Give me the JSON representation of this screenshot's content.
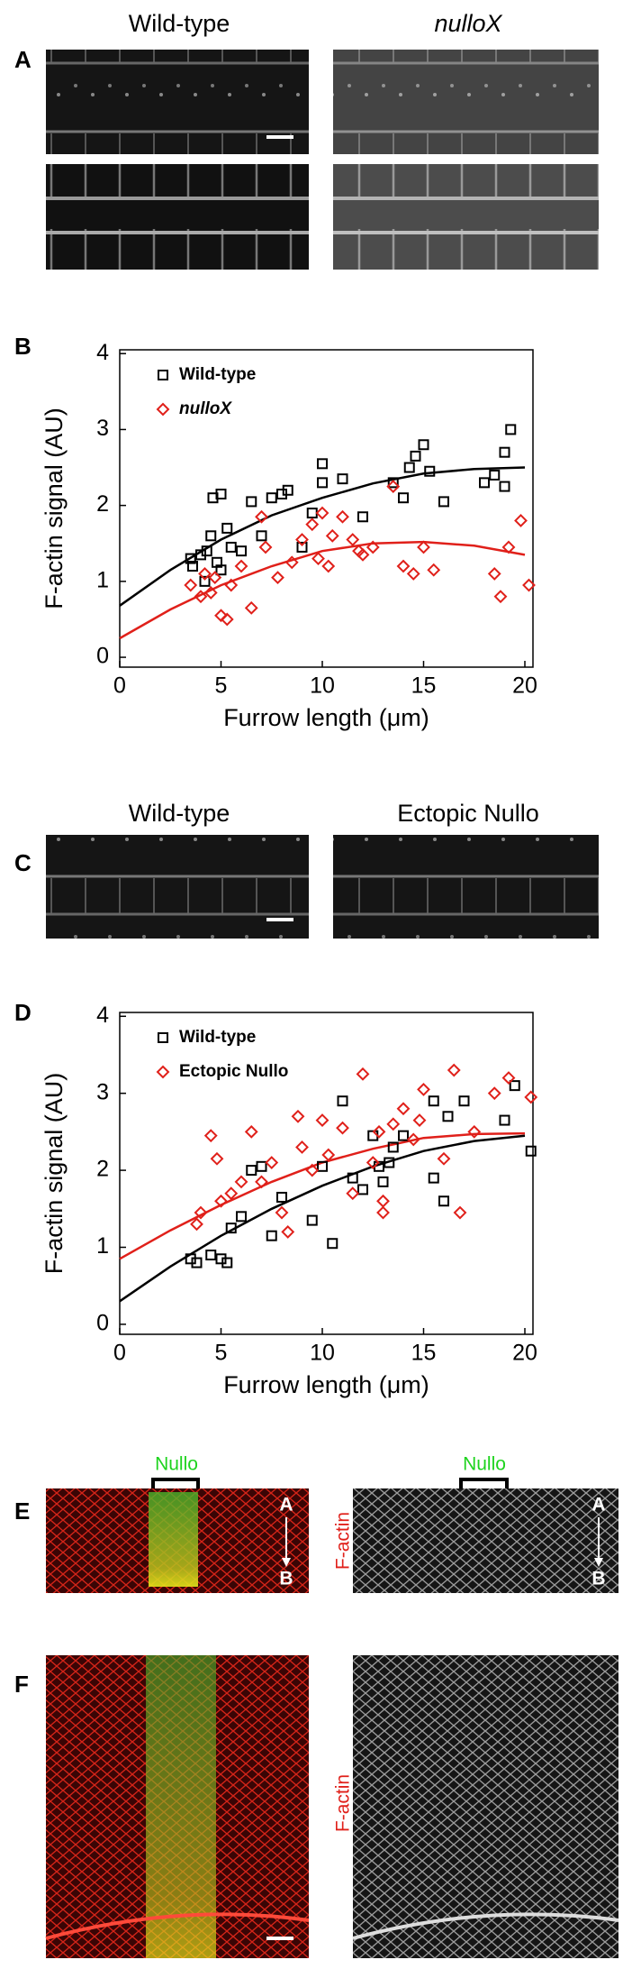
{
  "figure": {
    "panel_labels": [
      "A",
      "B",
      "C",
      "D",
      "E",
      "F"
    ],
    "a_titles": [
      "Wild-type",
      "nulloX"
    ],
    "c_titles": [
      "Wild-type",
      "Ectopic Nullo"
    ],
    "e_marker": [
      "Nullo",
      "Nullo"
    ],
    "e_axis": [
      "A",
      "B",
      "A",
      "B"
    ],
    "channel_labels": [
      "F-actin",
      "F-actin"
    ]
  },
  "chart_data": [
    {
      "type": "scatter",
      "x_label": "Furrow length (μm)",
      "y_label": "F-actin signal (AU)",
      "xlim": [
        0,
        20.4
      ],
      "ylim": [
        -0.13,
        4.05
      ],
      "xticks": [
        0,
        5,
        10,
        15,
        20
      ],
      "yticks": [
        0,
        1,
        2,
        3,
        4
      ],
      "series": [
        {
          "name": "Wild-type",
          "color": "#000000",
          "marker": "square",
          "x": [
            3.5,
            3.6,
            4,
            4.2,
            4.3,
            4.5,
            4.6,
            4.8,
            5,
            5,
            5.3,
            5.5,
            6,
            6.5,
            7,
            7.5,
            8,
            8.3,
            9,
            9.5,
            10,
            10,
            11,
            12,
            13.5,
            14,
            14.3,
            14.6,
            15,
            15.3,
            16,
            18,
            18.5,
            19,
            19.3,
            19
          ],
          "values": [
            1.3,
            1.2,
            1.35,
            1.0,
            1.4,
            1.6,
            2.1,
            1.25,
            2.15,
            1.15,
            1.7,
            1.45,
            1.4,
            2.05,
            1.6,
            2.1,
            2.15,
            2.2,
            1.45,
            1.9,
            2.55,
            2.3,
            2.35,
            1.85,
            2.3,
            2.1,
            2.5,
            2.65,
            2.8,
            2.45,
            2.05,
            2.3,
            2.4,
            2.7,
            3.0,
            2.25
          ]
        },
        {
          "name": "nulloX",
          "color": "#e0201a",
          "marker": "diamond",
          "italic": true,
          "x": [
            3.5,
            4,
            4.2,
            4.5,
            4.7,
            5,
            5.3,
            5.5,
            6,
            6.5,
            7,
            7.2,
            7.8,
            8.5,
            9,
            9.5,
            9.8,
            10,
            10.3,
            11,
            11.5,
            12,
            12.5,
            13.5,
            14,
            14.5,
            15,
            15.5,
            18.5,
            18.8,
            19.2,
            19.8,
            20.2,
            10.5,
            11.8
          ],
          "values": [
            0.95,
            0.8,
            1.1,
            0.85,
            1.05,
            0.55,
            0.5,
            0.95,
            1.2,
            0.65,
            1.85,
            1.45,
            1.05,
            1.25,
            1.55,
            1.75,
            1.3,
            1.9,
            1.2,
            1.85,
            1.55,
            1.35,
            1.45,
            2.25,
            1.2,
            1.1,
            1.45,
            1.15,
            1.1,
            0.8,
            1.45,
            1.8,
            0.95,
            1.6,
            1.4
          ]
        }
      ],
      "fit_lines": [
        {
          "color": "#000000",
          "x": [
            0,
            2.5,
            5,
            7.5,
            10,
            12.5,
            15,
            17.5,
            20
          ],
          "values": [
            0.68,
            1.15,
            1.55,
            1.87,
            2.1,
            2.29,
            2.42,
            2.48,
            2.5
          ]
        },
        {
          "color": "#e0201a",
          "x": [
            0,
            2.5,
            5,
            7.5,
            10,
            12.5,
            15,
            17.5,
            20
          ],
          "values": [
            0.25,
            0.63,
            0.95,
            1.2,
            1.4,
            1.5,
            1.52,
            1.47,
            1.35
          ]
        }
      ]
    },
    {
      "type": "scatter",
      "x_label": "Furrow length (μm)",
      "y_label": "F-actin signal (AU)",
      "xlim": [
        0,
        20.4
      ],
      "ylim": [
        -0.13,
        4.05
      ],
      "xticks": [
        0,
        5,
        10,
        15,
        20
      ],
      "yticks": [
        0,
        1,
        2,
        3,
        4
      ],
      "series": [
        {
          "name": "Wild-type",
          "color": "#000000",
          "marker": "square",
          "x": [
            3.5,
            3.8,
            4.5,
            5,
            5.3,
            5.5,
            6,
            6.5,
            7,
            7.5,
            8,
            9.5,
            10,
            10.5,
            11,
            11.5,
            12,
            12.5,
            13,
            13.3,
            13.5,
            14,
            15.5,
            16,
            16.2,
            17,
            19,
            19.5,
            20.3,
            15.5,
            12.8
          ],
          "values": [
            0.85,
            0.8,
            0.9,
            0.85,
            0.8,
            1.25,
            1.4,
            2.0,
            2.05,
            1.15,
            1.65,
            1.35,
            2.05,
            1.05,
            2.9,
            1.9,
            1.75,
            2.45,
            1.85,
            2.1,
            2.3,
            2.45,
            1.9,
            1.6,
            2.7,
            2.9,
            2.65,
            3.1,
            2.25,
            2.9,
            2.05
          ]
        },
        {
          "name": "Ectopic Nullo",
          "color": "#e0201a",
          "marker": "diamond",
          "x": [
            3.8,
            4,
            4.5,
            4.8,
            5,
            5.5,
            6,
            6.5,
            7,
            7.5,
            8,
            8.3,
            8.8,
            9,
            9.5,
            10,
            10.3,
            11,
            11.5,
            12,
            12.5,
            13,
            13,
            13.5,
            14,
            14.5,
            15,
            16,
            16.5,
            16.8,
            17.5,
            18.5,
            19.2,
            20.3,
            12.8,
            14.8
          ],
          "values": [
            1.3,
            1.45,
            2.45,
            2.15,
            1.6,
            1.7,
            1.85,
            2.5,
            1.85,
            2.1,
            1.45,
            1.2,
            2.7,
            2.3,
            2.0,
            2.65,
            2.2,
            2.55,
            1.7,
            3.25,
            2.1,
            1.6,
            1.45,
            2.6,
            2.8,
            2.4,
            3.05,
            2.15,
            3.3,
            1.45,
            2.5,
            3.0,
            3.2,
            2.95,
            2.5,
            2.65
          ]
        }
      ],
      "fit_lines": [
        {
          "color": "#000000",
          "x": [
            0,
            2.5,
            5,
            7.5,
            10,
            12.5,
            15,
            17.5,
            20
          ],
          "values": [
            0.3,
            0.75,
            1.15,
            1.5,
            1.8,
            2.05,
            2.25,
            2.38,
            2.45
          ]
        },
        {
          "color": "#e0201a",
          "x": [
            0,
            2.5,
            5,
            7.5,
            10,
            12.5,
            15,
            17.5,
            20
          ],
          "values": [
            0.85,
            1.22,
            1.55,
            1.85,
            2.1,
            2.28,
            2.42,
            2.47,
            2.48
          ]
        }
      ]
    }
  ]
}
